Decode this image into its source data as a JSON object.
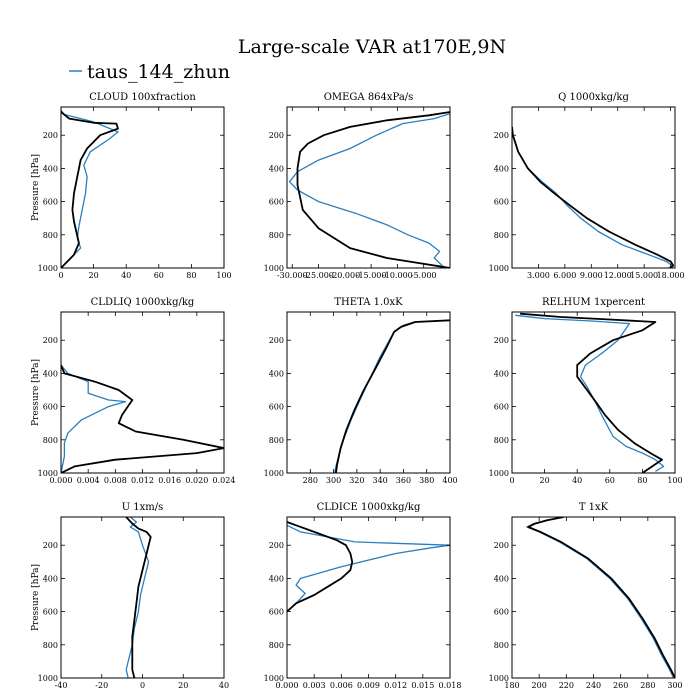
{
  "figure": {
    "title": "Large-scale VAR at170E,9N",
    "legend": {
      "name": "taus_144_zhun",
      "color": "#2a7fbf"
    },
    "black_color": "#000000"
  },
  "chart_data": [
    {
      "type": "line",
      "title": "CLOUD  100xfraction",
      "ylabel": "Pressure [hPa]",
      "xlim": [
        0,
        100
      ],
      "ylim": [
        1000,
        30
      ],
      "y_inverted": true,
      "xticks": [
        "0",
        "20",
        "40",
        "60",
        "80",
        "100"
      ],
      "xtick_values": [
        0,
        20,
        40,
        60,
        80,
        100
      ],
      "yticks": [
        "200",
        "400",
        "600",
        "800",
        "1000"
      ],
      "ytick_values": [
        200,
        400,
        600,
        800,
        1000
      ],
      "series": [
        {
          "color": "#2a7fbf",
          "x": [
            0,
            2,
            20,
            35,
            30,
            18,
            14,
            16,
            15,
            13,
            11,
            10,
            12,
            8,
            3,
            0
          ],
          "y": [
            50,
            75,
            120,
            180,
            220,
            300,
            380,
            450,
            550,
            650,
            750,
            820,
            880,
            920,
            970,
            1000
          ]
        },
        {
          "color": "#000000",
          "x": [
            0,
            5,
            20,
            34,
            35,
            24,
            16,
            12,
            10,
            8,
            7,
            8,
            11,
            8,
            3,
            0
          ],
          "y": [
            60,
            100,
            125,
            130,
            160,
            200,
            280,
            350,
            450,
            550,
            650,
            720,
            850,
            920,
            970,
            1000
          ]
        }
      ]
    },
    {
      "type": "line",
      "title": "OMEGA  864xPa/s",
      "ylabel": "",
      "xlim": [
        -31,
        0
      ],
      "ylim": [
        1000,
        30
      ],
      "y_inverted": true,
      "xticks": [
        "-30.000",
        "-25.000",
        "-20.000",
        "-15.000",
        "-10.000",
        "-5.000"
      ],
      "xtick_values": [
        -30,
        -25,
        -20,
        -15,
        -10,
        -5
      ],
      "yticks": [
        "200",
        "400",
        "600",
        "800",
        "1000"
      ],
      "ytick_values": [
        200,
        400,
        600,
        800,
        1000
      ],
      "series": [
        {
          "color": "#2a7fbf",
          "x": [
            0,
            -3,
            -9,
            -14,
            -19,
            -25,
            -29,
            -30.5,
            -29,
            -25,
            -18,
            -12,
            -8,
            -4,
            -2,
            -3,
            -1
          ],
          "y": [
            70,
            100,
            130,
            200,
            280,
            350,
            420,
            480,
            530,
            600,
            670,
            740,
            800,
            850,
            900,
            940,
            1000
          ]
        },
        {
          "color": "#000000",
          "x": [
            0,
            -4,
            -12,
            -19,
            -24,
            -27,
            -28.5,
            -29,
            -29,
            -28,
            -25,
            -19,
            -12,
            -6,
            -2,
            0
          ],
          "y": [
            60,
            80,
            110,
            150,
            200,
            250,
            300,
            400,
            500,
            650,
            760,
            880,
            940,
            970,
            990,
            1000
          ]
        }
      ]
    },
    {
      "type": "line",
      "title": "Q  1000xkg/kg",
      "ylabel": "",
      "xlim": [
        0,
        18500
      ],
      "ylim": [
        1000,
        30
      ],
      "y_inverted": true,
      "xticks": [
        "3.000",
        "6.000",
        "9.000",
        "12.000",
        "15.000",
        "18.000"
      ],
      "xtick_values": [
        3000,
        6000,
        9000,
        12000,
        15000,
        18000
      ],
      "yticks": [
        "200",
        "400",
        "600",
        "800",
        "1000"
      ],
      "ytick_values": [
        200,
        400,
        600,
        800,
        1000
      ],
      "series": [
        {
          "color": "#2a7fbf",
          "x": [
            0,
            100,
            700,
            1800,
            3400,
            5000,
            6200,
            7800,
            9800,
            12500,
            15500,
            17500,
            18200,
            17800
          ],
          "y": [
            150,
            200,
            300,
            400,
            480,
            550,
            620,
            700,
            780,
            860,
            920,
            960,
            985,
            1000
          ]
        },
        {
          "color": "#000000",
          "x": [
            0,
            100,
            700,
            1800,
            3200,
            4800,
            6500,
            8500,
            11000,
            14000,
            16500,
            18000,
            18300,
            18000
          ],
          "y": [
            150,
            200,
            300,
            400,
            480,
            550,
            620,
            700,
            780,
            860,
            920,
            960,
            985,
            1000
          ]
        }
      ]
    },
    {
      "type": "line",
      "title": "CLDLIQ  1000xkg/kg",
      "ylabel": "Pressure [hPa]",
      "xlim": [
        0,
        0.024
      ],
      "ylim": [
        1000,
        30
      ],
      "y_inverted": true,
      "xticks": [
        "0.000",
        "0.004",
        "0.008",
        "0.012",
        "0.016",
        "0.020",
        "0.024"
      ],
      "xtick_values": [
        0,
        0.004,
        0.008,
        0.012,
        0.016,
        0.02,
        0.024
      ],
      "yticks": [
        "200",
        "400",
        "600",
        "800",
        "1000"
      ],
      "ytick_values": [
        200,
        400,
        600,
        800,
        1000
      ],
      "series": [
        {
          "color": "#2a7fbf",
          "x": [
            0,
            0.001,
            0.004,
            0.004,
            0.007,
            0.0095,
            0.007,
            0.003,
            0.001,
            0.0005,
            0.0005,
            0
          ],
          "y": [
            350,
            400,
            450,
            520,
            560,
            570,
            600,
            680,
            760,
            820,
            900,
            1000
          ]
        },
        {
          "color": "#000000",
          "x": [
            0,
            0.0005,
            0.005,
            0.0085,
            0.0105,
            0.009,
            0.0085,
            0.011,
            0.018,
            0.024,
            0.02,
            0.008,
            0.002,
            0
          ],
          "y": [
            350,
            400,
            450,
            500,
            560,
            650,
            700,
            750,
            800,
            850,
            880,
            920,
            960,
            1000
          ]
        }
      ]
    },
    {
      "type": "line",
      "title": "THETA  1.0xK",
      "ylabel": "",
      "xlim": [
        260,
        400
      ],
      "ylim": [
        1000,
        30
      ],
      "y_inverted": true,
      "xticks": [
        "280",
        "300",
        "320",
        "340",
        "360",
        "380",
        "400"
      ],
      "xtick_values": [
        280,
        300,
        320,
        340,
        360,
        380,
        400
      ],
      "yticks": [
        "200",
        "400",
        "600",
        "800",
        "1000"
      ],
      "ytick_values": [
        200,
        400,
        600,
        800,
        1000
      ],
      "series": [
        {
          "color": "#2a7fbf",
          "x": [
            400,
            370,
            360,
            352,
            340,
            330,
            322,
            315,
            309,
            305,
            302,
            301
          ],
          "y": [
            80,
            90,
            110,
            150,
            300,
            450,
            570,
            680,
            790,
            880,
            960,
            1000
          ]
        },
        {
          "color": "#000000",
          "x": [
            400,
            370,
            358,
            352,
            345,
            336,
            326,
            318,
            311,
            306,
            303,
            302
          ],
          "y": [
            80,
            90,
            120,
            150,
            250,
            370,
            500,
            620,
            740,
            850,
            950,
            1000
          ]
        }
      ]
    },
    {
      "type": "line",
      "title": "RELHUM  1xpercent",
      "ylabel": "",
      "xlim": [
        0,
        100
      ],
      "ylim": [
        1000,
        30
      ],
      "y_inverted": true,
      "xticks": [
        "0",
        "20",
        "40",
        "60",
        "80",
        "100"
      ],
      "xtick_values": [
        0,
        20,
        40,
        60,
        80,
        100
      ],
      "yticks": [
        "200",
        "400",
        "600",
        "800",
        "1000"
      ],
      "ytick_values": [
        200,
        400,
        600,
        800,
        1000
      ],
      "series": [
        {
          "color": "#2a7fbf",
          "x": [
            2,
            20,
            50,
            72,
            65,
            55,
            45,
            42,
            46,
            50,
            55,
            62,
            70,
            80,
            88,
            93,
            88
          ],
          "y": [
            50,
            70,
            85,
            100,
            200,
            280,
            350,
            420,
            480,
            550,
            650,
            780,
            840,
            880,
            920,
            960,
            990
          ]
        },
        {
          "color": "#000000",
          "x": [
            5,
            30,
            60,
            88,
            80,
            62,
            48,
            40,
            40,
            46,
            52,
            57,
            65,
            75,
            85,
            92,
            86,
            80
          ],
          "y": [
            40,
            60,
            75,
            90,
            140,
            200,
            280,
            350,
            420,
            500,
            580,
            650,
            740,
            820,
            880,
            920,
            960,
            1000
          ]
        }
      ]
    },
    {
      "type": "line",
      "title": "U  1xm/s",
      "ylabel": "Pressure [hPa]",
      "xlim": [
        -40,
        40
      ],
      "ylim": [
        1000,
        30
      ],
      "y_inverted": true,
      "xticks": [
        "-40",
        "-20",
        "0",
        "20",
        "40"
      ],
      "xtick_values": [
        -40,
        -20,
        0,
        20,
        40
      ],
      "yticks": [
        "200",
        "400",
        "600",
        "800",
        "1000"
      ],
      "ytick_values": [
        200,
        400,
        600,
        800,
        1000
      ],
      "series": [
        {
          "color": "#2a7fbf",
          "x": [
            -6,
            -3,
            -6,
            -2,
            0,
            3,
            1,
            -1,
            -2,
            -4,
            -5,
            -7,
            -8,
            -7
          ],
          "y": [
            30,
            60,
            90,
            120,
            200,
            300,
            400,
            500,
            600,
            700,
            800,
            900,
            950,
            1000
          ]
        },
        {
          "color": "#000000",
          "x": [
            -8,
            -5,
            -2,
            2,
            4,
            2,
            0,
            -2,
            -3,
            -4,
            -5,
            -5,
            -5,
            -4
          ],
          "y": [
            30,
            70,
            100,
            120,
            150,
            250,
            350,
            450,
            550,
            650,
            750,
            850,
            950,
            1000
          ]
        }
      ]
    },
    {
      "type": "line",
      "title": "CLDICE  1000xkg/kg",
      "ylabel": "",
      "xlim": [
        0,
        0.018
      ],
      "ylim": [
        1000,
        30
      ],
      "y_inverted": true,
      "xticks": [
        "0.000",
        "0.003",
        "0.006",
        "0.009",
        "0.012",
        "0.015",
        "0.018"
      ],
      "xtick_values": [
        0,
        0.003,
        0.006,
        0.009,
        0.012,
        0.015,
        0.018
      ],
      "yticks": [
        "200",
        "400",
        "600",
        "800",
        "1000"
      ],
      "ytick_values": [
        200,
        400,
        600,
        800,
        1000
      ],
      "series": [
        {
          "color": "#2a7fbf",
          "x": [
            0,
            0.0015,
            0.0075,
            0.018,
            0.016,
            0.012,
            0.006,
            0.0015,
            0.001,
            0.002,
            0.0012,
            0.0004,
            0
          ],
          "y": [
            80,
            120,
            180,
            200,
            215,
            250,
            330,
            400,
            440,
            490,
            540,
            580,
            600
          ]
        },
        {
          "color": "#000000",
          "x": [
            0,
            0.001,
            0.003,
            0.0055,
            0.0065,
            0.007,
            0.0072,
            0.007,
            0.006,
            0.0045,
            0.003,
            0.001,
            0
          ],
          "y": [
            60,
            80,
            120,
            170,
            200,
            250,
            300,
            350,
            400,
            450,
            500,
            550,
            600
          ]
        }
      ]
    },
    {
      "type": "line",
      "title": "T  1xK",
      "ylabel": "",
      "xlim": [
        180,
        300
      ],
      "ylim": [
        1000,
        30
      ],
      "y_inverted": true,
      "xticks": [
        "180",
        "200",
        "220",
        "240",
        "260",
        "280",
        "300"
      ],
      "xtick_values": [
        180,
        200,
        220,
        240,
        260,
        280,
        300
      ],
      "yticks": [
        "200",
        "400",
        "600",
        "800",
        "1000"
      ],
      "ytick_values": [
        200,
        400,
        600,
        800,
        1000
      ],
      "series": [
        {
          "color": "#2a7fbf",
          "x": [
            218,
            205,
            196,
            191,
            200,
            215,
            235,
            252,
            265,
            275,
            284,
            290,
            296,
            299
          ],
          "y": [
            30,
            50,
            70,
            90,
            120,
            180,
            280,
            400,
            520,
            640,
            760,
            860,
            950,
            1000
          ]
        },
        {
          "color": "#000000",
          "x": [
            218,
            206,
            197,
            192,
            201,
            216,
            236,
            253,
            266,
            276,
            285,
            291,
            297,
            300
          ],
          "y": [
            30,
            50,
            70,
            90,
            120,
            180,
            280,
            400,
            520,
            640,
            760,
            860,
            950,
            1000
          ]
        }
      ]
    }
  ]
}
